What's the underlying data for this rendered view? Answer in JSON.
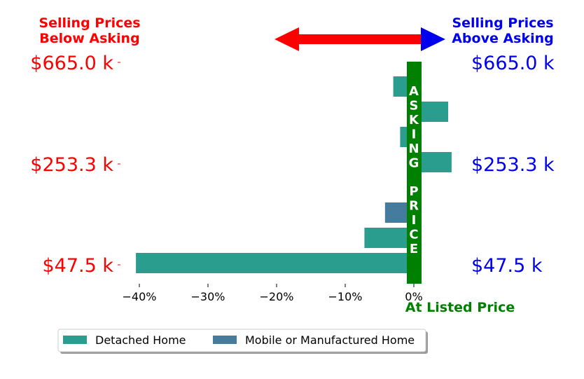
{
  "header": {
    "left_label_line1": "Selling Prices",
    "left_label_line2": "Below Asking",
    "right_label_line1": "Selling Prices",
    "right_label_line2": "Above Asking",
    "left_color": "#ff0000",
    "right_color": "#0000ee",
    "arrow_color": "#0000ee",
    "arrow_shaft_color": "#ff0000"
  },
  "center_line": {
    "text_top": "ASKING",
    "text_bottom": "PRICE",
    "color": "#008000",
    "footer_label": "At Listed Price"
  },
  "legend": {
    "items": [
      {
        "label": "Detached Home",
        "color": "#2a9d8f"
      },
      {
        "label": "Mobile or Manufactured Home",
        "color": "#457b9d"
      }
    ]
  },
  "chart_data": {
    "type": "bar",
    "orientation": "horizontal",
    "x_unit": "percent",
    "xlim": [
      -42,
      5
    ],
    "x_ticks": [
      {
        "value": -40,
        "label": "−40%"
      },
      {
        "value": -30,
        "label": "−30%"
      },
      {
        "value": -20,
        "label": "−20%"
      },
      {
        "value": -10,
        "label": "−10%"
      },
      {
        "value": 0,
        "label": "0%"
      }
    ],
    "y_ticks": [
      {
        "label": "$665.0 k",
        "row": 0
      },
      {
        "label": "$253.3 k",
        "row": 4
      },
      {
        "label": "$47.5 k",
        "row": 8
      }
    ],
    "rows": 9,
    "bars": [
      {
        "row": 0,
        "value": -3.0,
        "series": "Detached Home"
      },
      {
        "row": 1,
        "value": 5.0,
        "series": "Detached Home"
      },
      {
        "row": 2,
        "value": -2.0,
        "series": "Detached Home"
      },
      {
        "row": 3,
        "value": 5.5,
        "series": "Detached Home"
      },
      {
        "row": 4,
        "value": 1.0,
        "series": "Detached Home"
      },
      {
        "row": 5,
        "value": -4.2,
        "series": "Mobile or Manufactured Home"
      },
      {
        "row": 6,
        "value": -7.2,
        "series": "Detached Home"
      },
      {
        "row": 7,
        "value": -40.5,
        "series": "Detached Home"
      }
    ],
    "legend": [
      "Detached Home",
      "Mobile or Manufactured Home"
    ],
    "legend_position": "bottom-left"
  }
}
